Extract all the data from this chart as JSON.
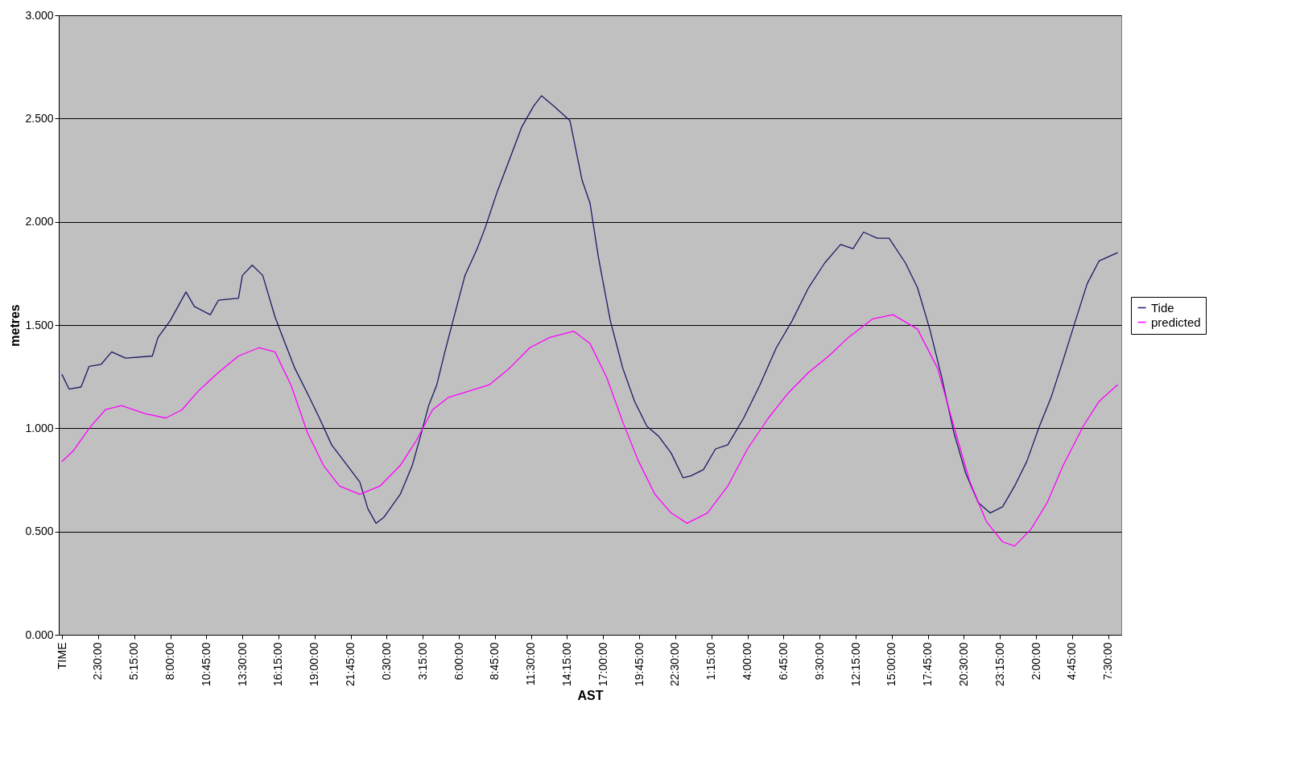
{
  "chart_data": {
    "type": "line",
    "xlabel": "AST",
    "ylabel": "metres",
    "xlim": [
      "2000-01-01T23:30",
      "2000-01-05T08:30"
    ],
    "ylim": [
      0,
      3
    ],
    "xticks": [
      {
        "value": "2000-01-01T23:45",
        "label": "TIME"
      },
      {
        "value": "2000-01-02T02:30",
        "label": "2:30:00"
      },
      {
        "value": "2000-01-02T05:15",
        "label": "5:15:00"
      },
      {
        "value": "2000-01-02T08:00",
        "label": "8:00:00"
      },
      {
        "value": "2000-01-02T10:45",
        "label": "10:45:00"
      },
      {
        "value": "2000-01-02T13:30",
        "label": "13:30:00"
      },
      {
        "value": "2000-01-02T16:15",
        "label": "16:15:00"
      },
      {
        "value": "2000-01-02T19:00",
        "label": "19:00:00"
      },
      {
        "value": "2000-01-02T21:45",
        "label": "21:45:00"
      },
      {
        "value": "2000-01-03T00:30",
        "label": "0:30:00"
      },
      {
        "value": "2000-01-03T03:15",
        "label": "3:15:00"
      },
      {
        "value": "2000-01-03T06:00",
        "label": "6:00:00"
      },
      {
        "value": "2000-01-03T08:45",
        "label": "8:45:00"
      },
      {
        "value": "2000-01-03T11:30",
        "label": "11:30:00"
      },
      {
        "value": "2000-01-03T14:15",
        "label": "14:15:00"
      },
      {
        "value": "2000-01-03T17:00",
        "label": "17:00:00"
      },
      {
        "value": "2000-01-03T19:45",
        "label": "19:45:00"
      },
      {
        "value": "2000-01-03T22:30",
        "label": "22:30:00"
      },
      {
        "value": "2000-01-04T01:15",
        "label": "1:15:00"
      },
      {
        "value": "2000-01-04T04:00",
        "label": "4:00:00"
      },
      {
        "value": "2000-01-04T06:45",
        "label": "6:45:00"
      },
      {
        "value": "2000-01-04T09:30",
        "label": "9:30:00"
      },
      {
        "value": "2000-01-04T12:15",
        "label": "12:15:00"
      },
      {
        "value": "2000-01-04T15:00",
        "label": "15:00:00"
      },
      {
        "value": "2000-01-04T17:45",
        "label": "17:45:00"
      },
      {
        "value": "2000-01-04T20:30",
        "label": "20:30:00"
      },
      {
        "value": "2000-01-04T23:15",
        "label": "23:15:00"
      },
      {
        "value": "2000-01-05T02:00",
        "label": "2:00:00"
      },
      {
        "value": "2000-01-05T04:45",
        "label": "4:45:00"
      },
      {
        "value": "2000-01-05T07:30",
        "label": "7:30:00"
      }
    ],
    "yticks": [
      {
        "value": 0,
        "label": "0.000"
      },
      {
        "value": 0.5,
        "label": "0.500"
      },
      {
        "value": 1,
        "label": "1.000"
      },
      {
        "value": 1.5,
        "label": "1.500"
      },
      {
        "value": 2,
        "label": "2.000"
      },
      {
        "value": 2.5,
        "label": "2.500"
      },
      {
        "value": 3,
        "label": "3.000"
      }
    ],
    "grid": "y",
    "legend": "right",
    "marker": "none",
    "line_style": "solid",
    "series": [
      {
        "name": "Tide",
        "color": "#1a1a66",
        "x": [
          "2000-01-01T23:45",
          "2000-01-02T00:17",
          "2000-01-02T01:12",
          "2000-01-02T01:49",
          "2000-01-02T02:44",
          "2000-01-02T03:32",
          "2000-01-02T04:36",
          "2000-01-02T06:38",
          "2000-01-02T07:04",
          "2000-01-02T07:59",
          "2000-01-02T09:12",
          "2000-01-02T09:50",
          "2000-01-02T11:03",
          "2000-01-02T11:40",
          "2000-01-02T13:12",
          "2000-01-02T13:30",
          "2000-01-02T14:15",
          "2000-01-02T15:03",
          "2000-01-02T15:59",
          "2000-01-02T16:35",
          "2000-01-02T17:30",
          "2000-01-02T18:27",
          "2000-01-02T19:22",
          "2000-01-02T20:18",
          "2000-01-02T21:30",
          "2000-01-02T22:27",
          "2000-01-02T23:04",
          "2000-01-02T23:41",
          "2000-01-03T00:18",
          "2000-01-03T01:32",
          "2000-01-03T02:27",
          "2000-01-03T03:04",
          "2000-01-03T03:42",
          "2000-01-03T04:19",
          "2000-01-03T04:56",
          "2000-01-03T05:33",
          "2000-01-03T06:28",
          "2000-01-03T07:24",
          "2000-01-03T08:00",
          "2000-01-03T08:57",
          "2000-01-03T09:51",
          "2000-01-03T10:48",
          "2000-01-03T11:42",
          "2000-01-03T12:18",
          "2000-01-03T13:15",
          "2000-01-03T14:28",
          "2000-01-03T15:24",
          "2000-01-03T16:00",
          "2000-01-03T16:38",
          "2000-01-03T17:33",
          "2000-01-03T18:30",
          "2000-01-03T19:24",
          "2000-01-03T20:20",
          "2000-01-03T21:15",
          "2000-01-03T22:11",
          "2000-01-03T23:06",
          "2000-01-03T23:42",
          "2000-01-04T00:39",
          "2000-01-04T01:34",
          "2000-01-04T02:30",
          "2000-01-04T03:43",
          "2000-01-04T04:57",
          "2000-01-04T06:12",
          "2000-01-04T07:24",
          "2000-01-04T08:39",
          "2000-01-04T09:53",
          "2000-01-04T11:06",
          "2000-01-04T12:03",
          "2000-01-04T12:51",
          "2000-01-04T13:54",
          "2000-01-04T14:48",
          "2000-01-04T16:03",
          "2000-01-04T16:58",
          "2000-01-04T17:54",
          "2000-01-04T18:48",
          "2000-01-04T19:44",
          "2000-01-04T20:39",
          "2000-01-04T21:36",
          "2000-01-04T22:30",
          "2000-01-04T23:27",
          "2000-01-05T00:22",
          "2000-01-05T01:18",
          "2000-01-05T02:12",
          "2000-01-05T03:09",
          "2000-01-05T04:04",
          "2000-01-05T05:00",
          "2000-01-05T05:54",
          "2000-01-05T06:48",
          "2000-01-05T08:12"
        ],
        "values": [
          1.26,
          1.19,
          1.2,
          1.3,
          1.31,
          1.37,
          1.34,
          1.35,
          1.44,
          1.52,
          1.66,
          1.59,
          1.55,
          1.62,
          1.63,
          1.74,
          1.79,
          1.74,
          1.54,
          1.44,
          1.29,
          1.17,
          1.05,
          0.92,
          0.82,
          0.74,
          0.61,
          0.54,
          0.57,
          0.68,
          0.82,
          0.96,
          1.11,
          1.21,
          1.37,
          1.52,
          1.74,
          1.87,
          1.97,
          2.15,
          2.3,
          2.46,
          2.56,
          2.61,
          2.56,
          2.49,
          2.2,
          2.09,
          1.83,
          1.52,
          1.29,
          1.13,
          1.01,
          0.96,
          0.88,
          0.76,
          0.77,
          0.8,
          0.9,
          0.92,
          1.05,
          1.21,
          1.39,
          1.52,
          1.68,
          1.8,
          1.89,
          1.87,
          1.95,
          1.92,
          1.92,
          1.8,
          1.68,
          1.48,
          1.25,
          0.98,
          0.78,
          0.64,
          0.59,
          0.62,
          0.72,
          0.84,
          1,
          1.15,
          1.33,
          1.52,
          1.7,
          1.81,
          1.85
        ]
      },
      {
        "name": "predicted",
        "color": "#ff00ff",
        "x": [
          "2000-01-01T23:45",
          "2000-01-02T00:36",
          "2000-01-02T01:49",
          "2000-01-02T03:03",
          "2000-01-02T04:17",
          "2000-01-02T06:08",
          "2000-01-02T07:40",
          "2000-01-02T08:54",
          "2000-01-02T10:08",
          "2000-01-02T11:40",
          "2000-01-02T13:12",
          "2000-01-02T14:45",
          "2000-01-02T15:59",
          "2000-01-02T17:12",
          "2000-01-02T18:27",
          "2000-01-02T19:41",
          "2000-01-02T20:54",
          "2000-01-02T22:27",
          "2000-01-02T23:59",
          "2000-01-03T01:32",
          "2000-01-03T02:45",
          "2000-01-03T04:00",
          "2000-01-03T05:13",
          "2000-01-03T06:46",
          "2000-01-03T08:18",
          "2000-01-03T09:51",
          "2000-01-03T11:24",
          "2000-01-03T12:56",
          "2000-01-03T14:46",
          "2000-01-03T16:00",
          "2000-01-03T17:15",
          "2000-01-03T18:30",
          "2000-01-03T19:42",
          "2000-01-03T20:57",
          "2000-01-03T22:11",
          "2000-01-03T23:24",
          "2000-01-04T00:57",
          "2000-01-04T02:30",
          "2000-01-04T04:00",
          "2000-01-04T05:36",
          "2000-01-04T07:06",
          "2000-01-04T08:39",
          "2000-01-04T10:12",
          "2000-01-04T11:42",
          "2000-01-04T13:33",
          "2000-01-04T15:06",
          "2000-01-04T16:58",
          "2000-01-04T18:30",
          "2000-01-04T19:44",
          "2000-01-04T20:58",
          "2000-01-04T22:12",
          "2000-01-04T23:27",
          "2000-01-05T00:22",
          "2000-01-05T01:36",
          "2000-01-05T02:51",
          "2000-01-05T04:04",
          "2000-01-05T05:36",
          "2000-01-05T06:48",
          "2000-01-05T08:12"
        ],
        "values": [
          0.84,
          0.89,
          1,
          1.09,
          1.11,
          1.07,
          1.05,
          1.09,
          1.18,
          1.27,
          1.35,
          1.39,
          1.37,
          1.21,
          0.98,
          0.82,
          0.72,
          0.68,
          0.72,
          0.82,
          0.94,
          1.09,
          1.15,
          1.18,
          1.21,
          1.29,
          1.39,
          1.44,
          1.47,
          1.41,
          1.25,
          1.03,
          0.84,
          0.68,
          0.59,
          0.54,
          0.59,
          0.72,
          0.9,
          1.05,
          1.17,
          1.27,
          1.35,
          1.44,
          1.53,
          1.55,
          1.48,
          1.29,
          1.01,
          0.74,
          0.55,
          0.45,
          0.43,
          0.51,
          0.64,
          0.82,
          1.01,
          1.13,
          1.21
        ]
      }
    ]
  }
}
